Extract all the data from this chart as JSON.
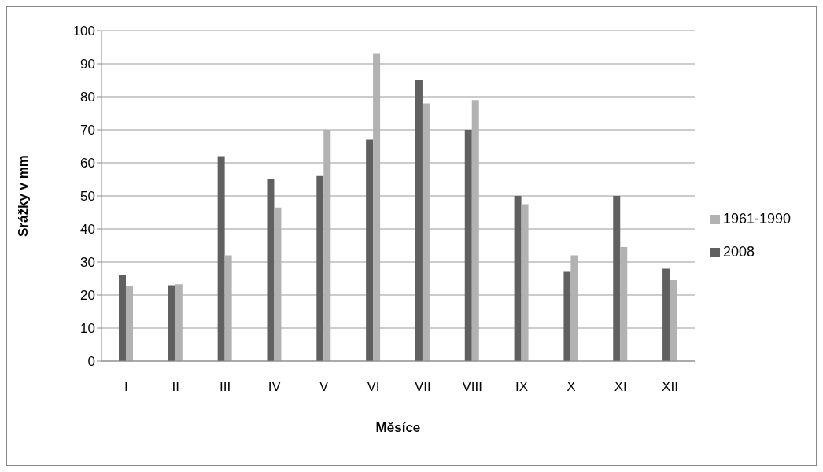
{
  "chart_data": {
    "type": "bar",
    "xlabel": "Měsíce",
    "ylabel": "Srážky v mm",
    "categories": [
      "I",
      "II",
      "III",
      "IV",
      "V",
      "VI",
      "VII",
      "VIII",
      "IX",
      "X",
      "XI",
      "XII"
    ],
    "series": [
      {
        "name": "2008",
        "color": "#606060",
        "values": [
          26,
          23,
          62,
          55,
          56,
          67,
          85,
          70,
          50,
          27,
          50,
          28
        ]
      },
      {
        "name": "1961-1990",
        "color": "#b2b2b2",
        "values": [
          22.6,
          23.3,
          32,
          46.5,
          70,
          93,
          78,
          79,
          47.5,
          32,
          34.5,
          24.5
        ]
      }
    ],
    "ylim": [
      0,
      100
    ],
    "yticks": [
      0,
      10,
      20,
      30,
      40,
      50,
      60,
      70,
      80,
      90,
      100
    ],
    "grid": "y",
    "legend": "right"
  }
}
